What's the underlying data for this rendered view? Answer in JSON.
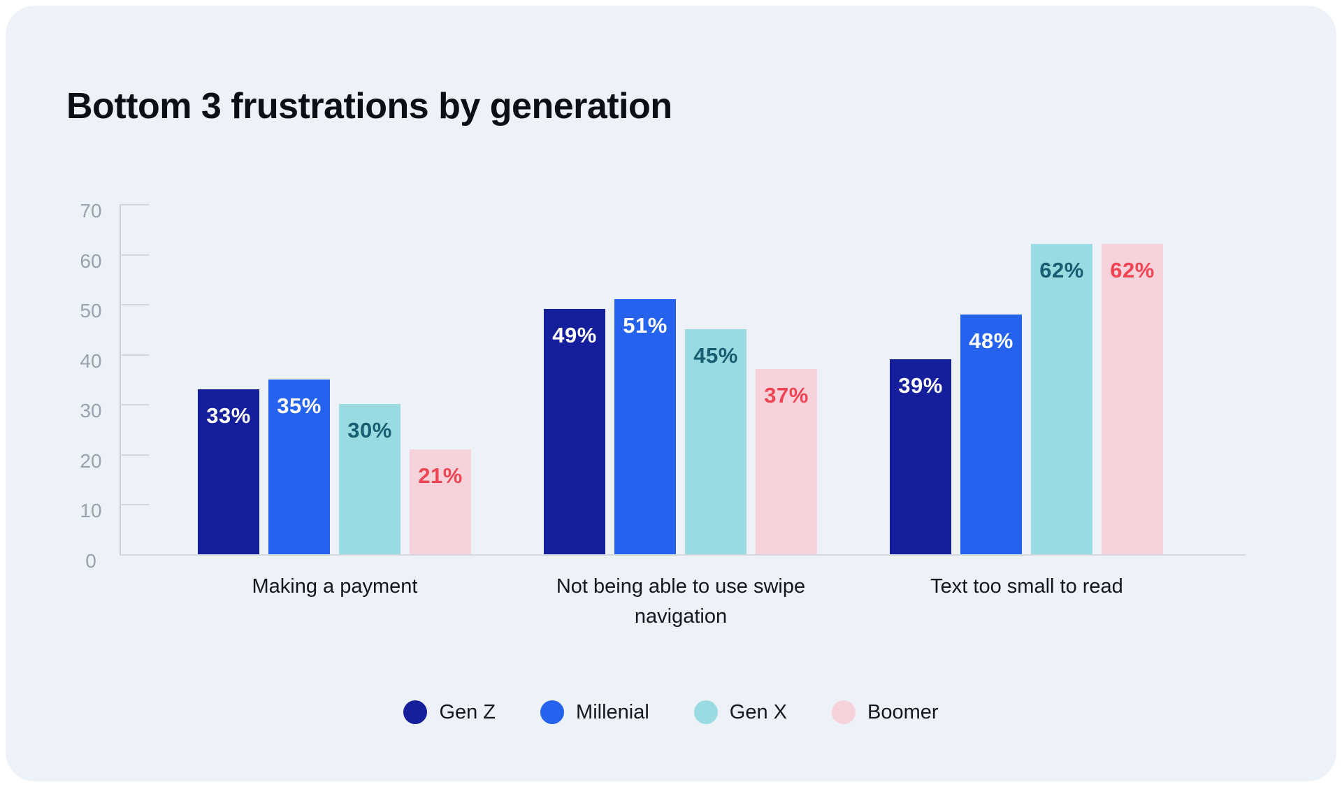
{
  "chart_data": {
    "type": "bar",
    "title": "Bottom 3 frustrations by generation",
    "categories": [
      "Making a payment",
      "Not being able to use swipe navigation",
      "Text too small to read"
    ],
    "series": [
      {
        "name": "Gen Z",
        "color": "#151f9c",
        "label_color": "#ffffff",
        "values": [
          33,
          49,
          39
        ]
      },
      {
        "name": "Millenial",
        "color": "#2563ee",
        "label_color": "#ffffff",
        "values": [
          35,
          51,
          48
        ]
      },
      {
        "name": "Gen X",
        "color": "#99dbe1",
        "label_color": "#175e73",
        "values": [
          30,
          45,
          62
        ]
      },
      {
        "name": "Boomer",
        "color": "#f6d3da",
        "label_color": "#ee4453",
        "values": [
          21,
          37,
          62
        ]
      }
    ],
    "value_suffix": "%",
    "ylim": [
      0,
      70
    ],
    "yticks": [
      0,
      10,
      20,
      30,
      40,
      50,
      60,
      70
    ],
    "grid": "short-ticks-left",
    "legend_position": "bottom-center",
    "colors": {
      "page_background": "#ffffff",
      "card_background": "#edf1f8",
      "title_text": "#0d0f18",
      "tick_label": "#9aa1ae",
      "axis_line": "#c9cdd5",
      "category_label": "#14171f"
    }
  }
}
